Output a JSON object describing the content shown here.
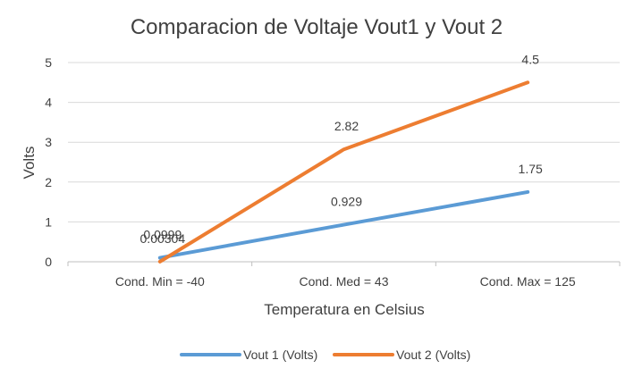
{
  "chart_data": {
    "type": "line",
    "title": "Comparacion de Voltaje Vout1 y Vout 2",
    "xlabel": "Temperatura en Celsius",
    "ylabel": "Volts",
    "categories": [
      "Cond. Min = -40",
      "Cond. Med = 43",
      "Cond. Max = 125"
    ],
    "ylim": [
      0,
      5
    ],
    "yticks": [
      "0",
      "1",
      "2",
      "3",
      "4",
      "5"
    ],
    "grid": true,
    "legend_position": "bottom",
    "series": [
      {
        "name": "Vout 1 (Volts)",
        "color": "#5b9bd5",
        "values": [
          0.0999,
          0.929,
          1.75
        ],
        "labels": [
          "0.0999",
          "0.929",
          "1.75"
        ]
      },
      {
        "name": "Vout 2 (Volts)",
        "color": "#ed7d31",
        "values": [
          0.00304,
          2.82,
          4.5
        ],
        "labels": [
          "0.00304",
          "2.82",
          "4.5"
        ]
      }
    ]
  }
}
